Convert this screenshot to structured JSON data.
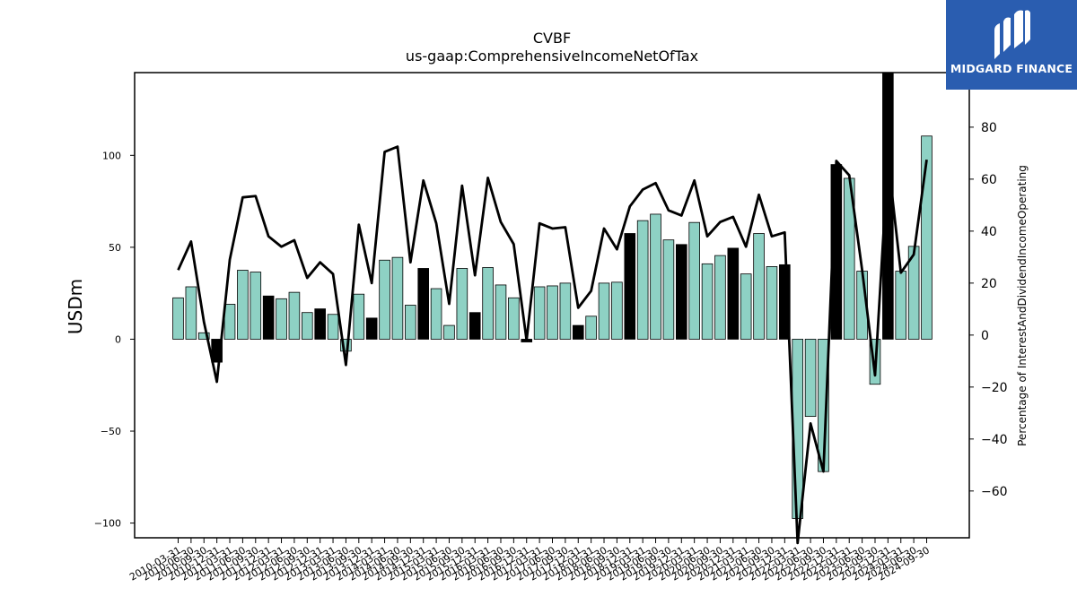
{
  "chart_data": {
    "type": "bar+line",
    "title": "CVBF",
    "subtitle": "us-gaap:ComprehensiveIncomeNetOfTax",
    "ylabel_left": "USDm",
    "ylabel_right": "Percentage of InterestAndDividendIncomeOperating",
    "ylim_left": [
      -108,
      145
    ],
    "ylim_right": [
      -78,
      101
    ],
    "yticks_left": [
      -100,
      -50,
      0,
      50,
      100
    ],
    "yticks_right": [
      -60,
      -40,
      -20,
      0,
      20,
      40,
      60,
      80
    ],
    "colors": {
      "bar_default": "#8ed1c4",
      "bar_highlight": "#000000",
      "line": "#000000"
    },
    "categories": [
      "2010-03-31",
      "2010-06-30",
      "2010-09-30",
      "2010-12-31",
      "2011-03-31",
      "2011-06-30",
      "2011-09-30",
      "2011-12-31",
      "2012-03-31",
      "2012-06-30",
      "2012-09-30",
      "2012-12-31",
      "2013-03-31",
      "2013-06-30",
      "2013-09-30",
      "2013-12-31",
      "2014-03-31",
      "2014-06-30",
      "2014-09-30",
      "2014-12-31",
      "2015-03-31",
      "2015-06-30",
      "2015-09-30",
      "2015-12-31",
      "2016-03-31",
      "2016-06-30",
      "2016-09-30",
      "2016-12-31",
      "2017-03-31",
      "2017-06-30",
      "2017-09-30",
      "2017-12-31",
      "2018-03-31",
      "2018-06-30",
      "2018-09-30",
      "2018-12-31",
      "2019-03-31",
      "2019-06-30",
      "2019-09-30",
      "2019-12-31",
      "2020-03-31",
      "2020-06-30",
      "2020-09-30",
      "2020-12-31",
      "2021-03-31",
      "2021-06-30",
      "2021-09-30",
      "2021-12-31",
      "2022-03-31",
      "2022-06-30",
      "2022-09-30",
      "2022-12-31",
      "2023-03-31",
      "2023-06-30",
      "2023-09-30",
      "2023-12-31",
      "2024-03-31",
      "2024-06-30",
      "2024-09-30"
    ],
    "series": [
      {
        "kind": "bar",
        "values": [
          22.5,
          28.5,
          3.5,
          -12.5,
          19.0,
          37.5,
          36.5,
          23.5,
          22.0,
          25.5,
          14.5,
          16.5,
          13.5,
          -6.5,
          24.5,
          11.5,
          43.0,
          44.5,
          18.5,
          38.5,
          27.5,
          7.5,
          38.5,
          14.5,
          39.0,
          29.5,
          22.5,
          -1.5,
          28.5,
          29.0,
          30.5,
          7.5,
          12.5,
          30.5,
          31.0,
          57.5,
          64.5,
          68.0,
          54.0,
          51.5,
          63.5,
          41.0,
          45.5,
          49.5,
          35.5,
          57.5,
          39.5,
          40.5,
          -97.5,
          -42.0,
          -72.0,
          95.0,
          87.5,
          37.0,
          -24.5,
          145.0,
          37.0,
          50.5,
          110.5
        ],
        "highlight": [
          false,
          false,
          false,
          true,
          false,
          false,
          false,
          true,
          false,
          false,
          false,
          true,
          false,
          false,
          false,
          true,
          false,
          false,
          false,
          true,
          false,
          false,
          false,
          true,
          false,
          false,
          false,
          true,
          false,
          false,
          false,
          true,
          false,
          false,
          false,
          true,
          false,
          false,
          false,
          true,
          false,
          false,
          false,
          true,
          false,
          false,
          false,
          true,
          false,
          false,
          false,
          true,
          false,
          false,
          false,
          true,
          false,
          false,
          false
        ]
      },
      {
        "kind": "line",
        "axis": "right",
        "values": [
          25,
          36,
          5,
          -18,
          29,
          53,
          53.5,
          38,
          34,
          36.5,
          22,
          28,
          23.5,
          -11.5,
          42.5,
          20,
          70.5,
          72.5,
          28,
          59.5,
          43,
          12,
          57.5,
          23,
          60.5,
          43.5,
          35,
          -2,
          43,
          41,
          41.5,
          10.5,
          17,
          41,
          33,
          49.5,
          56,
          58.5,
          48,
          46,
          59.5,
          38,
          43.5,
          45.5,
          34,
          54,
          38,
          39.5,
          -80,
          -34,
          -52.5,
          67,
          61.5,
          25,
          -15.5,
          68,
          24,
          31,
          67.5
        ]
      }
    ]
  },
  "branding": {
    "logo_text": "MIDGARD FINANCE",
    "logo_icon": "midgard-m-icon"
  }
}
